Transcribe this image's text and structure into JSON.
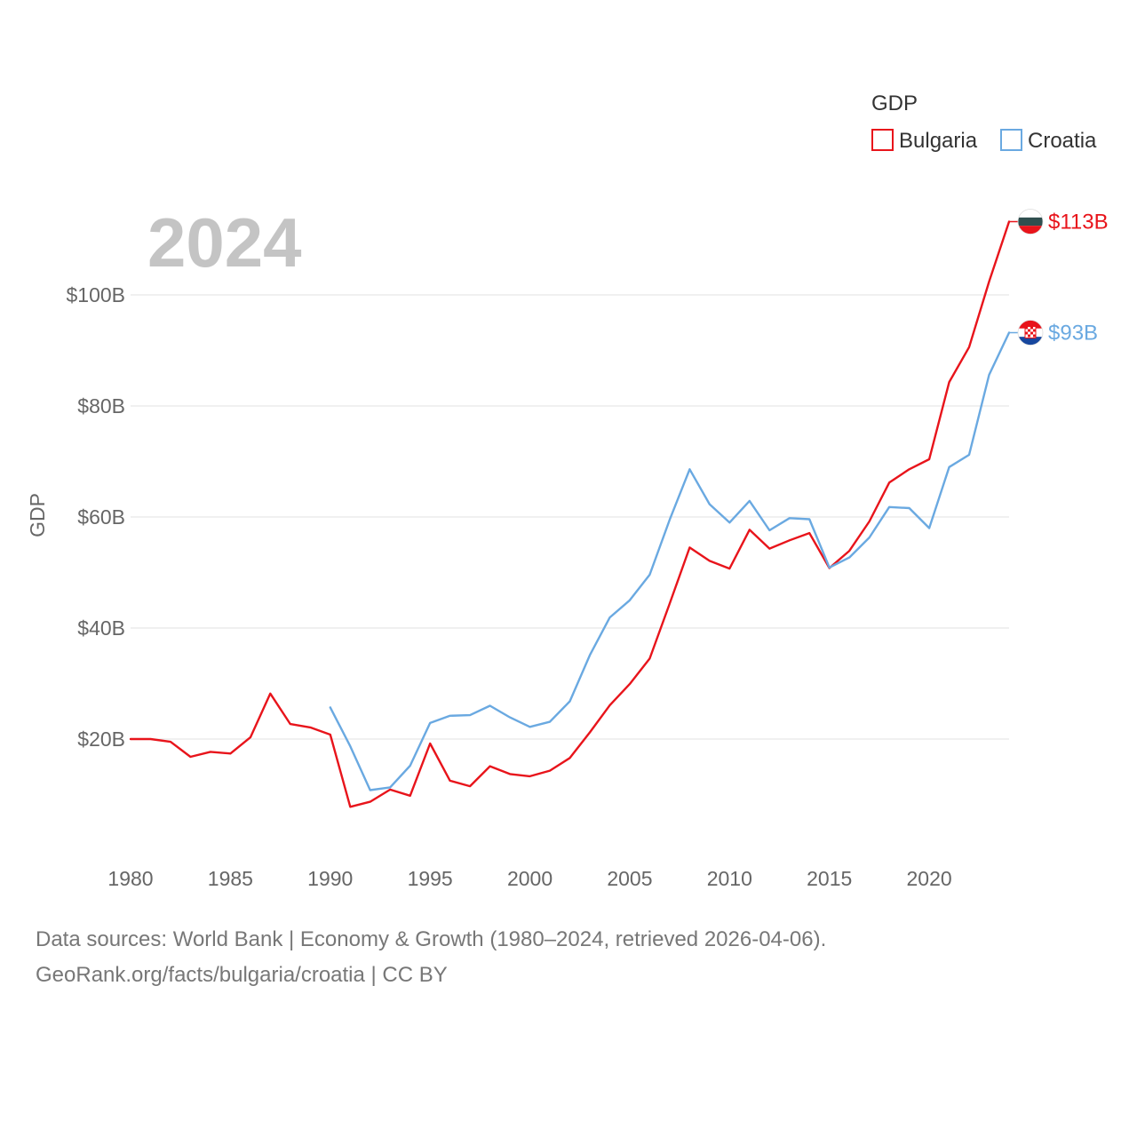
{
  "chart_data": {
    "type": "line",
    "year_label": "2024",
    "ylabel": "GDP",
    "xlim": [
      1980,
      2024
    ],
    "ylim": [
      0,
      120
    ],
    "x_ticks": [
      1980,
      1985,
      1990,
      1995,
      2000,
      2005,
      2010,
      2015,
      2020
    ],
    "y_ticks": [
      {
        "value": 20,
        "label": "$20B"
      },
      {
        "value": 40,
        "label": "$40B"
      },
      {
        "value": 60,
        "label": "$60B"
      },
      {
        "value": 80,
        "label": "$80B"
      },
      {
        "value": 100,
        "label": "$100B"
      }
    ],
    "legend": {
      "title": "GDP",
      "position": "top-right"
    },
    "series": [
      {
        "name": "Bulgaria",
        "color": "#e8141b",
        "end_label": "$113B",
        "flag_icon": "bulgaria-flag-icon",
        "x": [
          1980,
          1981,
          1982,
          1983,
          1984,
          1985,
          1986,
          1987,
          1988,
          1989,
          1990,
          1991,
          1992,
          1993,
          1994,
          1995,
          1996,
          1997,
          1998,
          1999,
          2000,
          2001,
          2002,
          2003,
          2004,
          2005,
          2006,
          2007,
          2008,
          2009,
          2010,
          2011,
          2012,
          2013,
          2014,
          2015,
          2016,
          2017,
          2018,
          2019,
          2020,
          2021,
          2022,
          2023,
          2024
        ],
        "values": [
          20.0,
          20.0,
          19.5,
          16.8,
          17.7,
          17.4,
          20.3,
          28.2,
          22.7,
          22.1,
          20.8,
          7.8,
          8.7,
          10.9,
          9.8,
          19.2,
          12.5,
          11.5,
          15.1,
          13.7,
          13.3,
          14.3,
          16.6,
          21.2,
          26.1,
          29.9,
          34.5,
          44.4,
          54.5,
          52.1,
          50.7,
          57.7,
          54.3,
          55.8,
          57.1,
          50.8,
          53.9,
          59.2,
          66.2,
          68.6,
          70.4,
          84.3,
          90.6,
          102.4,
          113.2
        ]
      },
      {
        "name": "Croatia",
        "color": "#6aa9e1",
        "end_label": "$93B",
        "flag_icon": "croatia-flag-icon",
        "x": [
          1990,
          1991,
          1992,
          1993,
          1994,
          1995,
          1996,
          1997,
          1998,
          1999,
          2000,
          2001,
          2002,
          2003,
          2004,
          2005,
          2006,
          2007,
          2008,
          2009,
          2010,
          2011,
          2012,
          2013,
          2014,
          2015,
          2016,
          2017,
          2018,
          2019,
          2020,
          2021,
          2022,
          2023,
          2024
        ],
        "values": [
          25.7,
          18.7,
          10.8,
          11.3,
          15.2,
          22.9,
          24.2,
          24.3,
          26.0,
          23.9,
          22.2,
          23.1,
          26.8,
          35.1,
          41.9,
          45.0,
          49.6,
          59.5,
          68.6,
          62.3,
          59.0,
          62.9,
          57.6,
          59.8,
          59.6,
          50.9,
          52.7,
          56.3,
          61.8,
          61.6,
          58.0,
          69.0,
          71.2,
          85.6,
          93.2
        ]
      }
    ]
  },
  "footer": {
    "sources": "Data sources: World Bank | Economy & Growth (1980–2024, retrieved 2026-04-06).",
    "credit": "GeoRank.org/facts/bulgaria/croatia | CC BY"
  }
}
